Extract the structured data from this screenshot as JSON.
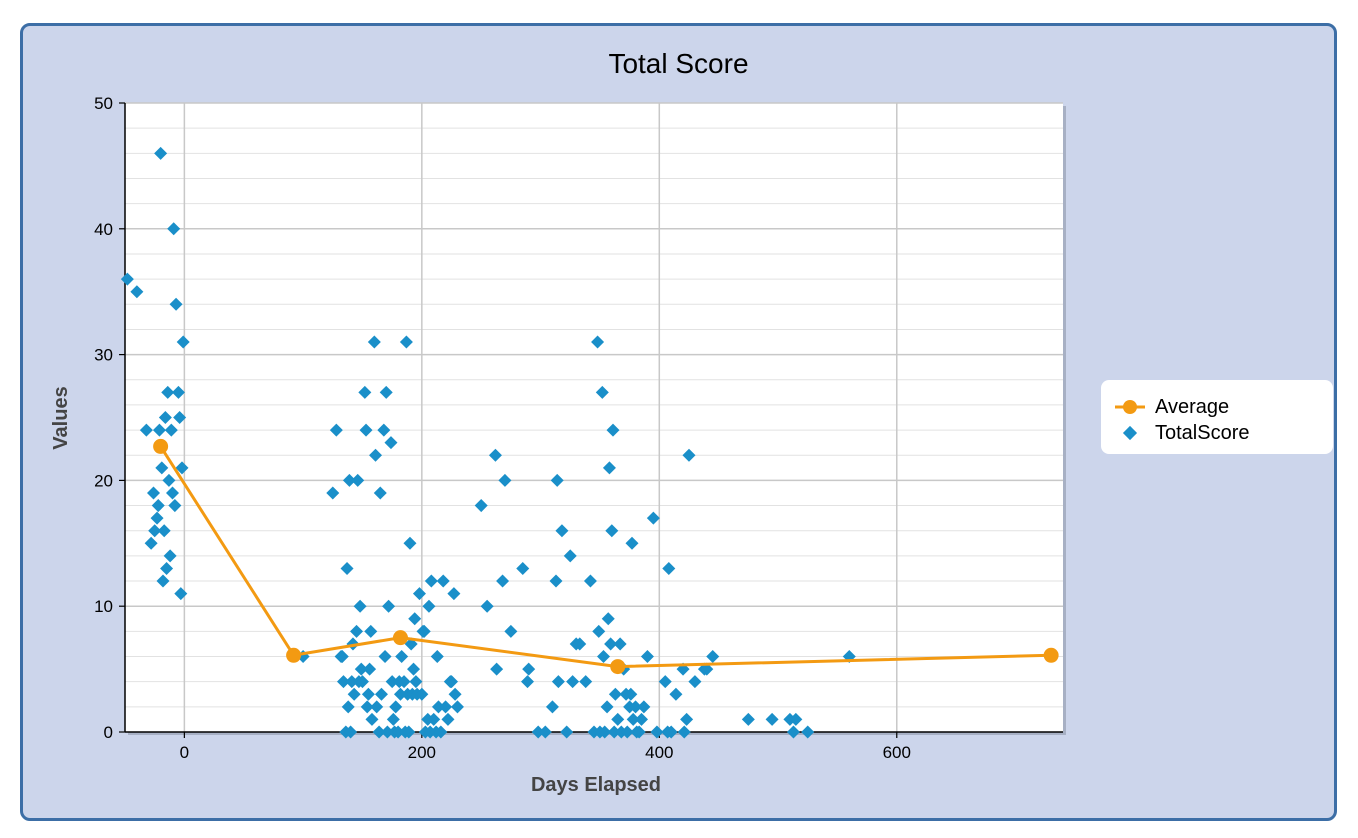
{
  "colors": {
    "panel_bg": "#ccd5eb",
    "panel_border": "#3c6ea6",
    "average": "#f39a12",
    "totalscore": "#1a8fc9",
    "grid": "#c8c8c8"
  },
  "chart_data": {
    "type": "scatter",
    "title": "Total Score",
    "xlabel": "Days Elapsed",
    "ylabel": "Values",
    "xlim": [
      -50,
      740
    ],
    "ylim": [
      0,
      50
    ],
    "x_ticks": [
      0,
      200,
      400,
      600
    ],
    "y_ticks": [
      0,
      10,
      20,
      30,
      40,
      50
    ],
    "grid": true,
    "legend_position": "right",
    "series": [
      {
        "name": "Average",
        "type": "line",
        "color": "#f39a12",
        "x": [
          -20,
          92,
          182,
          365,
          730
        ],
        "y": [
          22.7,
          6.1,
          7.5,
          5.2,
          6.1
        ]
      },
      {
        "name": "TotalScore",
        "type": "scatter",
        "color": "#1a8fc9",
        "points": [
          [
            -48,
            36
          ],
          [
            -40,
            35
          ],
          [
            -32,
            24
          ],
          [
            -28,
            15
          ],
          [
            -26,
            19
          ],
          [
            -25,
            16
          ],
          [
            -23,
            17
          ],
          [
            -22,
            18
          ],
          [
            -21,
            24
          ],
          [
            -20,
            46
          ],
          [
            -19,
            21
          ],
          [
            -18,
            12
          ],
          [
            -17,
            16
          ],
          [
            -16,
            25
          ],
          [
            -15,
            13
          ],
          [
            -14,
            27
          ],
          [
            -13,
            20
          ],
          [
            -12,
            14
          ],
          [
            -11,
            24
          ],
          [
            -10,
            19
          ],
          [
            -9,
            40
          ],
          [
            -8,
            18
          ],
          [
            -7,
            34
          ],
          [
            -5,
            27
          ],
          [
            -4,
            25
          ],
          [
            -3,
            11
          ],
          [
            -2,
            21
          ],
          [
            -1,
            31
          ],
          [
            100,
            6
          ],
          [
            125,
            19
          ],
          [
            128,
            24
          ],
          [
            132,
            6
          ],
          [
            133,
            6
          ],
          [
            134,
            4
          ],
          [
            136,
            0
          ],
          [
            137,
            13
          ],
          [
            138,
            2
          ],
          [
            139,
            20
          ],
          [
            140,
            0
          ],
          [
            141,
            4
          ],
          [
            142,
            7
          ],
          [
            143,
            3
          ],
          [
            145,
            8
          ],
          [
            146,
            20
          ],
          [
            147,
            4
          ],
          [
            148,
            10
          ],
          [
            149,
            5
          ],
          [
            150,
            4
          ],
          [
            152,
            27
          ],
          [
            153,
            24
          ],
          [
            154,
            2
          ],
          [
            155,
            3
          ],
          [
            156,
            5
          ],
          [
            157,
            8
          ],
          [
            158,
            1
          ],
          [
            160,
            31
          ],
          [
            161,
            22
          ],
          [
            162,
            2
          ],
          [
            164,
            0
          ],
          [
            165,
            19
          ],
          [
            166,
            3
          ],
          [
            168,
            24
          ],
          [
            169,
            6
          ],
          [
            170,
            27
          ],
          [
            171,
            0
          ],
          [
            172,
            10
          ],
          [
            174,
            23
          ],
          [
            175,
            4
          ],
          [
            176,
            1
          ],
          [
            177,
            0
          ],
          [
            178,
            2
          ],
          [
            180,
            0
          ],
          [
            181,
            4
          ],
          [
            182,
            3
          ],
          [
            183,
            6
          ],
          [
            185,
            4
          ],
          [
            186,
            0
          ],
          [
            187,
            31
          ],
          [
            188,
            3
          ],
          [
            189,
            0
          ],
          [
            190,
            15
          ],
          [
            191,
            7
          ],
          [
            192,
            3
          ],
          [
            193,
            5
          ],
          [
            194,
            9
          ],
          [
            195,
            4
          ],
          [
            196,
            3
          ],
          [
            198,
            11
          ],
          [
            200,
            3
          ],
          [
            201,
            8
          ],
          [
            202,
            8
          ],
          [
            203,
            0
          ],
          [
            205,
            1
          ],
          [
            206,
            10
          ],
          [
            207,
            0
          ],
          [
            208,
            12
          ],
          [
            210,
            1
          ],
          [
            212,
            0
          ],
          [
            213,
            6
          ],
          [
            214,
            2
          ],
          [
            216,
            0
          ],
          [
            218,
            12
          ],
          [
            220,
            2
          ],
          [
            222,
            1
          ],
          [
            224,
            4
          ],
          [
            225,
            4
          ],
          [
            227,
            11
          ],
          [
            228,
            3
          ],
          [
            230,
            2
          ],
          [
            250,
            18
          ],
          [
            255,
            10
          ],
          [
            262,
            22
          ],
          [
            263,
            5
          ],
          [
            268,
            12
          ],
          [
            270,
            20
          ],
          [
            275,
            8
          ],
          [
            285,
            13
          ],
          [
            289,
            4
          ],
          [
            290,
            5
          ],
          [
            298,
            0
          ],
          [
            304,
            0
          ],
          [
            310,
            2
          ],
          [
            313,
            12
          ],
          [
            314,
            20
          ],
          [
            315,
            4
          ],
          [
            318,
            16
          ],
          [
            322,
            0
          ],
          [
            325,
            14
          ],
          [
            327,
            4
          ],
          [
            330,
            7
          ],
          [
            333,
            7
          ],
          [
            338,
            4
          ],
          [
            342,
            12
          ],
          [
            345,
            0
          ],
          [
            348,
            31
          ],
          [
            349,
            8
          ],
          [
            350,
            0
          ],
          [
            352,
            27
          ],
          [
            353,
            6
          ],
          [
            354,
            0
          ],
          [
            356,
            2
          ],
          [
            357,
            9
          ],
          [
            358,
            21
          ],
          [
            359,
            7
          ],
          [
            360,
            16
          ],
          [
            361,
            24
          ],
          [
            362,
            0
          ],
          [
            363,
            3
          ],
          [
            365,
            1
          ],
          [
            367,
            7
          ],
          [
            368,
            0
          ],
          [
            370,
            5
          ],
          [
            372,
            3
          ],
          [
            373,
            0
          ],
          [
            375,
            2
          ],
          [
            376,
            3
          ],
          [
            377,
            15
          ],
          [
            378,
            1
          ],
          [
            380,
            2
          ],
          [
            381,
            0
          ],
          [
            383,
            0
          ],
          [
            385,
            1
          ],
          [
            387,
            2
          ],
          [
            390,
            6
          ],
          [
            395,
            17
          ],
          [
            398,
            0
          ],
          [
            405,
            4
          ],
          [
            407,
            0
          ],
          [
            408,
            13
          ],
          [
            410,
            0
          ],
          [
            414,
            3
          ],
          [
            420,
            5
          ],
          [
            421,
            0
          ],
          [
            423,
            1
          ],
          [
            425,
            22
          ],
          [
            430,
            4
          ],
          [
            438,
            5
          ],
          [
            440,
            5
          ],
          [
            445,
            6
          ],
          [
            475,
            1
          ],
          [
            495,
            1
          ],
          [
            510,
            1
          ],
          [
            513,
            0
          ],
          [
            515,
            1
          ],
          [
            525,
            0
          ],
          [
            560,
            6
          ]
        ]
      }
    ]
  }
}
